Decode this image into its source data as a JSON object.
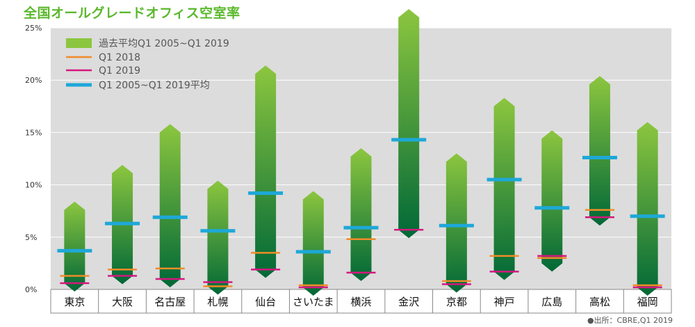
{
  "title": "全国オールグレードオフィス空室率",
  "source": "●出所：CBRE,Q1 2019",
  "colors": {
    "plot_bg": "#dcdcdc",
    "range_top": "#8cc63f",
    "range_bottom": "#006837",
    "q1_2018": "#f08c28",
    "q1_2019": "#d6177e",
    "average": "#1ea8d8",
    "title": "#5bb82d"
  },
  "chart_data": {
    "type": "bar",
    "title": "全国オールグレードオフィス空室率",
    "ylim": [
      0,
      25
    ],
    "yticks": [
      "0%",
      "5%",
      "10%",
      "15%",
      "20%",
      "25%"
    ],
    "grid": true,
    "legend_position": "top-left",
    "categories": [
      "東京",
      "大阪",
      "名古屋",
      "札幌",
      "仙台",
      "さいたま",
      "横浜",
      "金沢",
      "京都",
      "神戸",
      "広島",
      "高松",
      "福岡"
    ],
    "legend": [
      "過去平均Q1 2005~Q1 2019",
      "Q1 2018",
      "Q1 2019",
      "Q1 2005~Q1 2019平均"
    ],
    "series": [
      {
        "name": "過去平均Q1 2005~Q1 2019",
        "kind": "range",
        "low": [
          0.6,
          1.3,
          1.0,
          0.3,
          1.9,
          0.2,
          1.6,
          5.7,
          0.5,
          1.7,
          2.5,
          6.9,
          0.2
        ],
        "high": [
          7.6,
          11.1,
          15.0,
          9.6,
          20.6,
          8.6,
          12.7,
          26.0,
          12.2,
          17.5,
          14.4,
          19.6,
          15.2
        ]
      },
      {
        "name": "Q1 2018",
        "kind": "marker",
        "values": [
          1.3,
          1.9,
          2.0,
          0.3,
          3.5,
          0.4,
          4.8,
          5.7,
          0.8,
          3.2,
          3.0,
          7.6,
          0.4
        ]
      },
      {
        "name": "Q1 2019",
        "kind": "marker",
        "values": [
          0.6,
          1.3,
          1.0,
          0.7,
          1.9,
          0.2,
          1.6,
          5.7,
          0.5,
          1.7,
          3.2,
          6.9,
          0.2
        ]
      },
      {
        "name": "Q1 2005~Q1 2019平均",
        "kind": "marker",
        "values": [
          3.7,
          6.3,
          6.9,
          5.6,
          9.2,
          3.6,
          5.9,
          14.3,
          6.1,
          10.5,
          7.8,
          12.6,
          7.0
        ]
      }
    ]
  }
}
